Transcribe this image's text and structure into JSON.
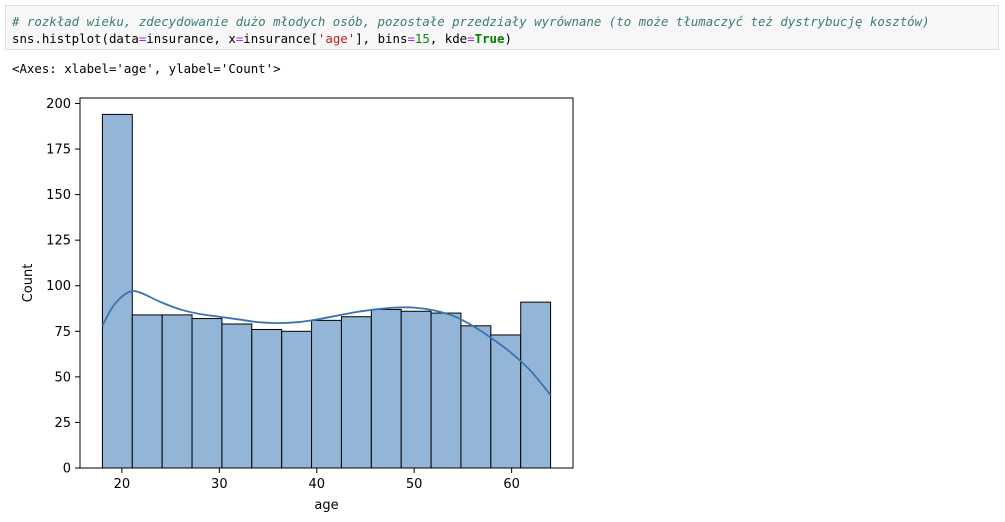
{
  "code": {
    "comment": "# rozkład wieku, zdecydowanie dużo młodych osób, pozostałe przedziały wyrównane (to może tłumaczyć też dystrybucję kosztów)",
    "call_prefix": "sns.histplot(data",
    "eq": "=",
    "data_arg": "insurance, x",
    "x_arg_prefix": "insurance[",
    "x_arg_str": "'age'",
    "x_arg_suffix": "], bins",
    "bins_val": "15",
    "kde_sep": ", kde",
    "kde_val": "True",
    "close": ")"
  },
  "output": {
    "text": "<Axes: xlabel='age', ylabel='Count'>"
  },
  "chart_data": {
    "type": "bar",
    "subtype": "histogram_with_kde",
    "xlabel": "age",
    "ylabel": "Count",
    "xlim": [
      15.7,
      66.3
    ],
    "ylim": [
      0,
      203
    ],
    "x_ticks": [
      20,
      30,
      40,
      50,
      60
    ],
    "y_ticks": [
      0,
      25,
      50,
      75,
      100,
      125,
      150,
      175,
      200
    ],
    "bin_range": [
      18,
      64
    ],
    "bins": 15,
    "values": [
      194,
      84,
      84,
      82,
      79,
      76,
      75,
      81,
      83,
      87,
      86,
      85,
      78,
      73,
      91
    ],
    "kde": {
      "x": [
        18,
        19,
        20,
        21,
        22,
        24,
        26,
        28,
        30,
        32,
        34,
        36,
        38,
        40,
        42,
        44,
        46,
        48,
        50,
        52,
        54,
        56,
        58,
        60,
        62,
        64
      ],
      "y": [
        78,
        88,
        94,
        97,
        96,
        91,
        87,
        84.5,
        83,
        81.5,
        80,
        79.5,
        80,
        81.5,
        83.5,
        85.5,
        87,
        88,
        88,
        86.5,
        83.5,
        78,
        71,
        63,
        53,
        40
      ]
    },
    "colors": {
      "bar_fill": "#93b6d8",
      "bar_edge": "#000000",
      "kde_line": "#3a74b0"
    },
    "grid": false,
    "legend": "none"
  }
}
